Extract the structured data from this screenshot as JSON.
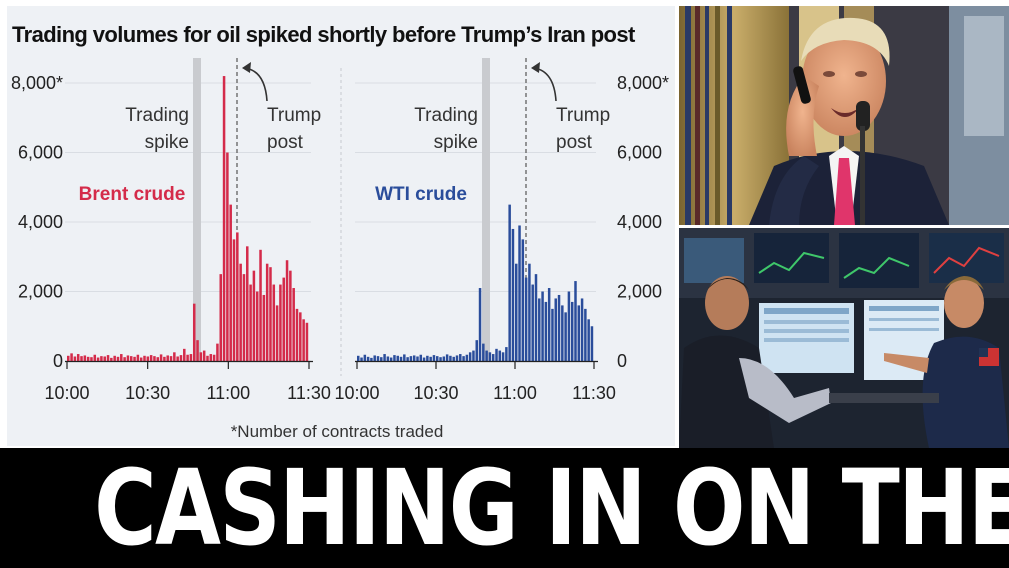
{
  "chart_data": [
    {
      "type": "bar",
      "title": "Trading volumes for oil spiked shortly before Trump’s Iran post",
      "series_label": "Brent crude",
      "color": "#d42b4a",
      "ylim": [
        0,
        8000
      ],
      "ytick_labels": [
        "0",
        "2,000",
        "4,000",
        "6,000",
        "8,000*"
      ],
      "xtick_labels": [
        "10:00",
        "10:30",
        "11:00",
        "11:30"
      ],
      "annotations": {
        "spike": [
          "Trading",
          "spike"
        ],
        "post": [
          "Trump",
          "post"
        ]
      },
      "values": [
        150,
        220,
        130,
        200,
        140,
        160,
        120,
        110,
        180,
        100,
        140,
        130,
        170,
        90,
        150,
        120,
        200,
        110,
        160,
        140,
        120,
        180,
        100,
        150,
        130,
        170,
        140,
        110,
        190,
        120,
        160,
        140,
        250,
        130,
        170,
        350,
        180,
        200,
        1650,
        600,
        250,
        300,
        150,
        200,
        180,
        500,
        2500,
        8200,
        6000,
        4500,
        3500,
        3700,
        2800,
        2500,
        3300,
        2200,
        2600,
        2000,
        3200,
        1900,
        2800,
        2700,
        2200,
        1600,
        2200,
        2400,
        2900,
        2600,
        2100,
        1500,
        1400,
        1200,
        1100
      ]
    },
    {
      "type": "bar",
      "series_label": "WTI crude",
      "color": "#2a4d9b",
      "ylim": [
        0,
        8000
      ],
      "ytick_labels": [
        "0",
        "2,000",
        "4,000",
        "6,000",
        "8,000*"
      ],
      "xtick_labels": [
        "10:00",
        "10:30",
        "11:00",
        "11:30"
      ],
      "annotations": {
        "spike": [
          "Trading",
          "spike"
        ],
        "post": [
          "Trump",
          "post"
        ]
      },
      "values": [
        150,
        100,
        180,
        120,
        90,
        160,
        140,
        110,
        200,
        130,
        100,
        170,
        150,
        120,
        190,
        110,
        140,
        160,
        130,
        180,
        100,
        150,
        120,
        170,
        140,
        110,
        130,
        190,
        150,
        120,
        160,
        200,
        140,
        180,
        250,
        300,
        600,
        2100,
        500,
        300,
        250,
        200,
        350,
        300,
        250,
        400,
        4500,
        3800,
        2800,
        3900,
        3500,
        2400,
        2800,
        2200,
        2500,
        1800,
        2000,
        1700,
        2100,
        1500,
        1800,
        1900,
        1600,
        1400,
        2000,
        1700,
        2300,
        1600,
        1800,
        1500,
        1200,
        1000
      ]
    }
  ],
  "footnote": "*Number of contracts traded",
  "headline": "CASHING IN ON THE WAR?",
  "photos": [
    {
      "alt": "Trump on the phone at a microphone"
    },
    {
      "alt": "Traders at screens on the trading floor"
    }
  ]
}
